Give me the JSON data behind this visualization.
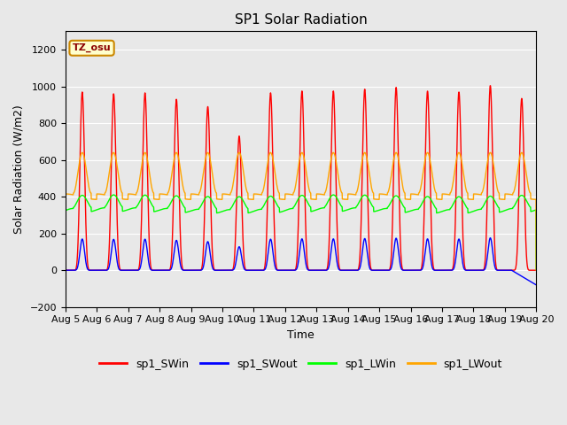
{
  "title": "SP1 Solar Radiation",
  "xlabel": "Time",
  "ylabel": "Solar Radiation (W/m2)",
  "ylim": [
    -200,
    1300
  ],
  "yticks": [
    -200,
    0,
    200,
    400,
    600,
    800,
    1000,
    1200
  ],
  "colors": {
    "sp1_SWin": "#ff0000",
    "sp1_SWout": "#0000ff",
    "sp1_LWin": "#00ff00",
    "sp1_LWout": "#ffa500"
  },
  "xtick_labels": [
    "Aug 5",
    "Aug 6",
    "Aug 7",
    "Aug 8",
    "Aug 9",
    "Aug 10",
    "Aug 11",
    "Aug 12",
    "Aug 13",
    "Aug 14",
    "Aug 15",
    "Aug 16",
    "Aug 17",
    "Aug 18",
    "Aug 19",
    "Aug 20"
  ],
  "annotation_text": "TZ_osu",
  "line_width": 1.0,
  "num_days": 15,
  "points_per_day": 144,
  "sw_peaks": [
    970,
    960,
    965,
    930,
    890,
    730,
    965,
    975,
    975,
    985,
    995,
    975,
    970,
    1005,
    935
  ],
  "sw_sunrise": 0.255,
  "sw_sunset": 0.82,
  "sw_sharpness": 6.0,
  "swout_ratio": 0.175,
  "lwin_base": 340,
  "lwin_amp": 65,
  "lwout_base": 420,
  "lwout_amp": 220
}
